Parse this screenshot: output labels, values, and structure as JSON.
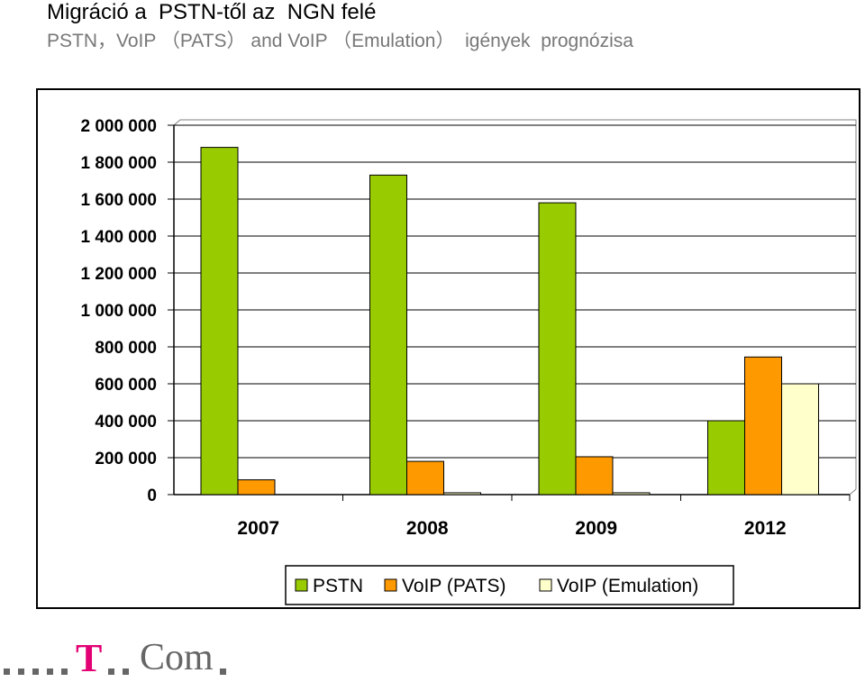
{
  "header": {
    "title": "Migráció a  PSTN-től az  NGN felé",
    "subtitle": "PSTN，VoIP （PATS） and VoIP （Emulation）  igények  prognózisa"
  },
  "logo": {
    "t_letter": "T",
    "com_text": "Com",
    "accent_color": "#e20074"
  },
  "chart_data": {
    "type": "bar",
    "categories": [
      "2007",
      "2008",
      "2009",
      "2012"
    ],
    "series": [
      {
        "name": "PSTN",
        "color": "#99cc00",
        "values": [
          1880000,
          1730000,
          1580000,
          400000
        ]
      },
      {
        "name": "VoIP (PATS)",
        "color": "#ff9900",
        "values": [
          80000,
          180000,
          205000,
          745000
        ]
      },
      {
        "name": "VoIP (Emulation)",
        "color": "#ffffcc",
        "values": [
          0,
          10000,
          10000,
          600000
        ]
      }
    ],
    "ylim": [
      0,
      2000000
    ],
    "yticks": [
      "0",
      "200 000",
      "400 000",
      "600 000",
      "800 000",
      "1 000 000",
      "1 200 000",
      "1 400 000",
      "1 600 000",
      "1 800 000",
      "2 000 000"
    ],
    "grid": true,
    "legend_position": "bottom-right",
    "xlabel": "",
    "ylabel": "",
    "title": ""
  }
}
